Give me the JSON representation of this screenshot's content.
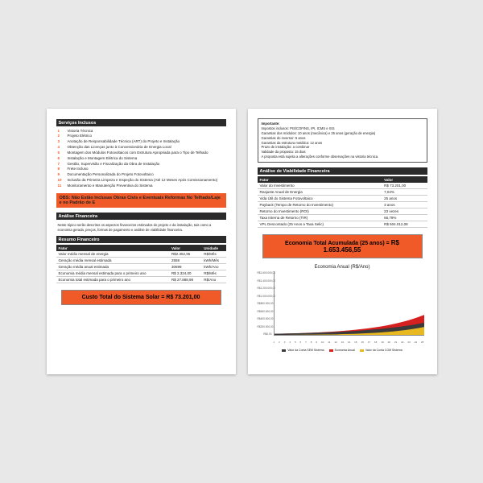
{
  "colors": {
    "header_bg": "#2a2a2a",
    "orange": "#f05a28",
    "orange_light": "#f4a582",
    "chart_dark": "#3a3a3a",
    "chart_red": "#d62020",
    "chart_yellow": "#e8b820"
  },
  "page1": {
    "servicos_title": "Serviços Inclusos",
    "servicos": [
      "Vistoria Técnica",
      "Projeto Elétrico",
      "Anotação de Responsabilidade Técnica (ART) do Projeto e Instalação",
      "Obtenção das Licenças junto à Concessionária de Energia Local",
      "Montagem dos Módulos Fotovoltaicos com Estrutura Apropriada para o Tipo de Telhado",
      "Instalação e Montagem Elétrica do Sistema",
      "Gestão, Supervisão e Fiscalização da Obra de Instalação",
      "Frete Incluso",
      "Documentação Personalizada do Projeto Fotovoltaico",
      "Inclusão da Primeira Limpeza e Inspeção do Sistema (Até 12 Meses Após Comissionamento)",
      "Monitoramento e Manutenção Preventiva do Sistema"
    ],
    "obs": "OBS: Não Estão Inclusas Obras Civis e Eventuais Reformas No Telhado/Laje e no Padrão de E",
    "analise_title": "Análise Financeira",
    "analise_text": "Neste tópico serão descritos os aspectos financeiros estimados do projeto e da instalação, tais como a economia gerada, preços, formas de pagamento e análise de viabilidade financeira.",
    "resumo_title": "Resumo Financeiro",
    "resumo_headers": [
      "Fator",
      "Valor",
      "Unidade"
    ],
    "resumo_rows": [
      [
        "Valor médio mensal de energia",
        "R$2.352,96",
        "R$/Mês"
      ],
      [
        "Geração média mensal estimada",
        "2558",
        "kWh/Mês"
      ],
      [
        "Geração média anual estimada",
        "30699",
        "kWh/Ano"
      ],
      [
        "Economia média mensal estimada para o primeiro ano",
        "R$ 2.324,00",
        "R$/Mês"
      ],
      [
        "Economia total estimada para o primeiro ano",
        "R$ 27.888,98",
        "R$/Ano"
      ]
    ],
    "custo_label": "Custo Total do Sistema Solar  =",
    "custo_value": "R$ 73.201,00"
  },
  "page2": {
    "importante_title": "Importante:",
    "importante_lines": [
      "Impostos inclusos: PIS/COFINS, IPI, ICMS e ISS",
      "Garantias dos módulos: 10 anos (mecânica) e 25 anos (geração de energia)",
      "Garantias do inversor: 5 anos",
      "Garantias da estrutura metálica: 12 anos",
      "Prazo de instalação: a combinar",
      "Validade da proposta: 15 dias",
      "A proposta está sujeita a alterações conforme observações na vistoria técnica."
    ],
    "viab_title": "Análise de Viabilidade Financeira",
    "viab_headers": [
      "Fator",
      "Valor"
    ],
    "viab_rows": [
      [
        "Valor do Investimento",
        "R$ 73.201,00"
      ],
      [
        "Reajuste Anual de Energia",
        "7,04%"
      ],
      [
        "Vida Útil do Sistema Fotovoltaico",
        "25 anos"
      ],
      [
        "Payback (Tempo de Retorno do Investimento)",
        "3 anos"
      ],
      [
        "Retorno do Investimento (ROI)",
        "23 vezes"
      ],
      [
        "Taxa Interna de Retorno (TIR)",
        "66,79%"
      ],
      [
        "VPL Descontado (25 Anos a Taxa Selic)",
        "R$ 504.012,08"
      ]
    ],
    "econ_label": "Economia Total Acumulada (25 anos)  =",
    "econ_value": "R$ 1.653.456,55",
    "chart_title": "Economia Anual (R$/Ano)",
    "chart": {
      "ylim": [
        0,
        1600000
      ],
      "y_ticks": [
        "R$1.600.000,00",
        "R$1.400.000,00",
        "R$1.200.000,00",
        "R$1.000.000,00",
        "R$800.000,00",
        "R$600.000,00",
        "R$400.000,00",
        "R$200.000,00",
        "R$0,00"
      ],
      "x_ticks": [
        "1",
        "2",
        "3",
        "4",
        "5",
        "6",
        "7",
        "8",
        "9",
        "10",
        "11",
        "12",
        "13",
        "14",
        "15",
        "16",
        "17",
        "18",
        "19",
        "20",
        "21",
        "22",
        "23",
        "24",
        "25"
      ],
      "series": {
        "dark": [
          28,
          31,
          34,
          37,
          41,
          45,
          50,
          55,
          61,
          67,
          74,
          82,
          91,
          100,
          111,
          123,
          136,
          150,
          166,
          184,
          203,
          225,
          249,
          275,
          304
        ],
        "red": [
          28,
          31,
          35,
          39,
          44,
          49,
          55,
          62,
          70,
          79,
          89,
          101,
          114,
          129,
          146,
          165,
          187,
          211,
          239,
          271,
          307,
          347,
          393,
          445,
          503
        ],
        "yellow": [
          0,
          0,
          0,
          2,
          3,
          4,
          5,
          7,
          9,
          11,
          14,
          19,
          23,
          29,
          35,
          42,
          51,
          61,
          73,
          87,
          104,
          122,
          144,
          170,
          199
        ]
      },
      "legend": [
        {
          "label": "Valor da Conta SEM Sistema",
          "color": "#3a3a3a"
        },
        {
          "label": "Economia Anual",
          "color": "#d62020"
        },
        {
          "label": "Valor da Conta COM Sistema",
          "color": "#e8b820"
        }
      ]
    }
  }
}
